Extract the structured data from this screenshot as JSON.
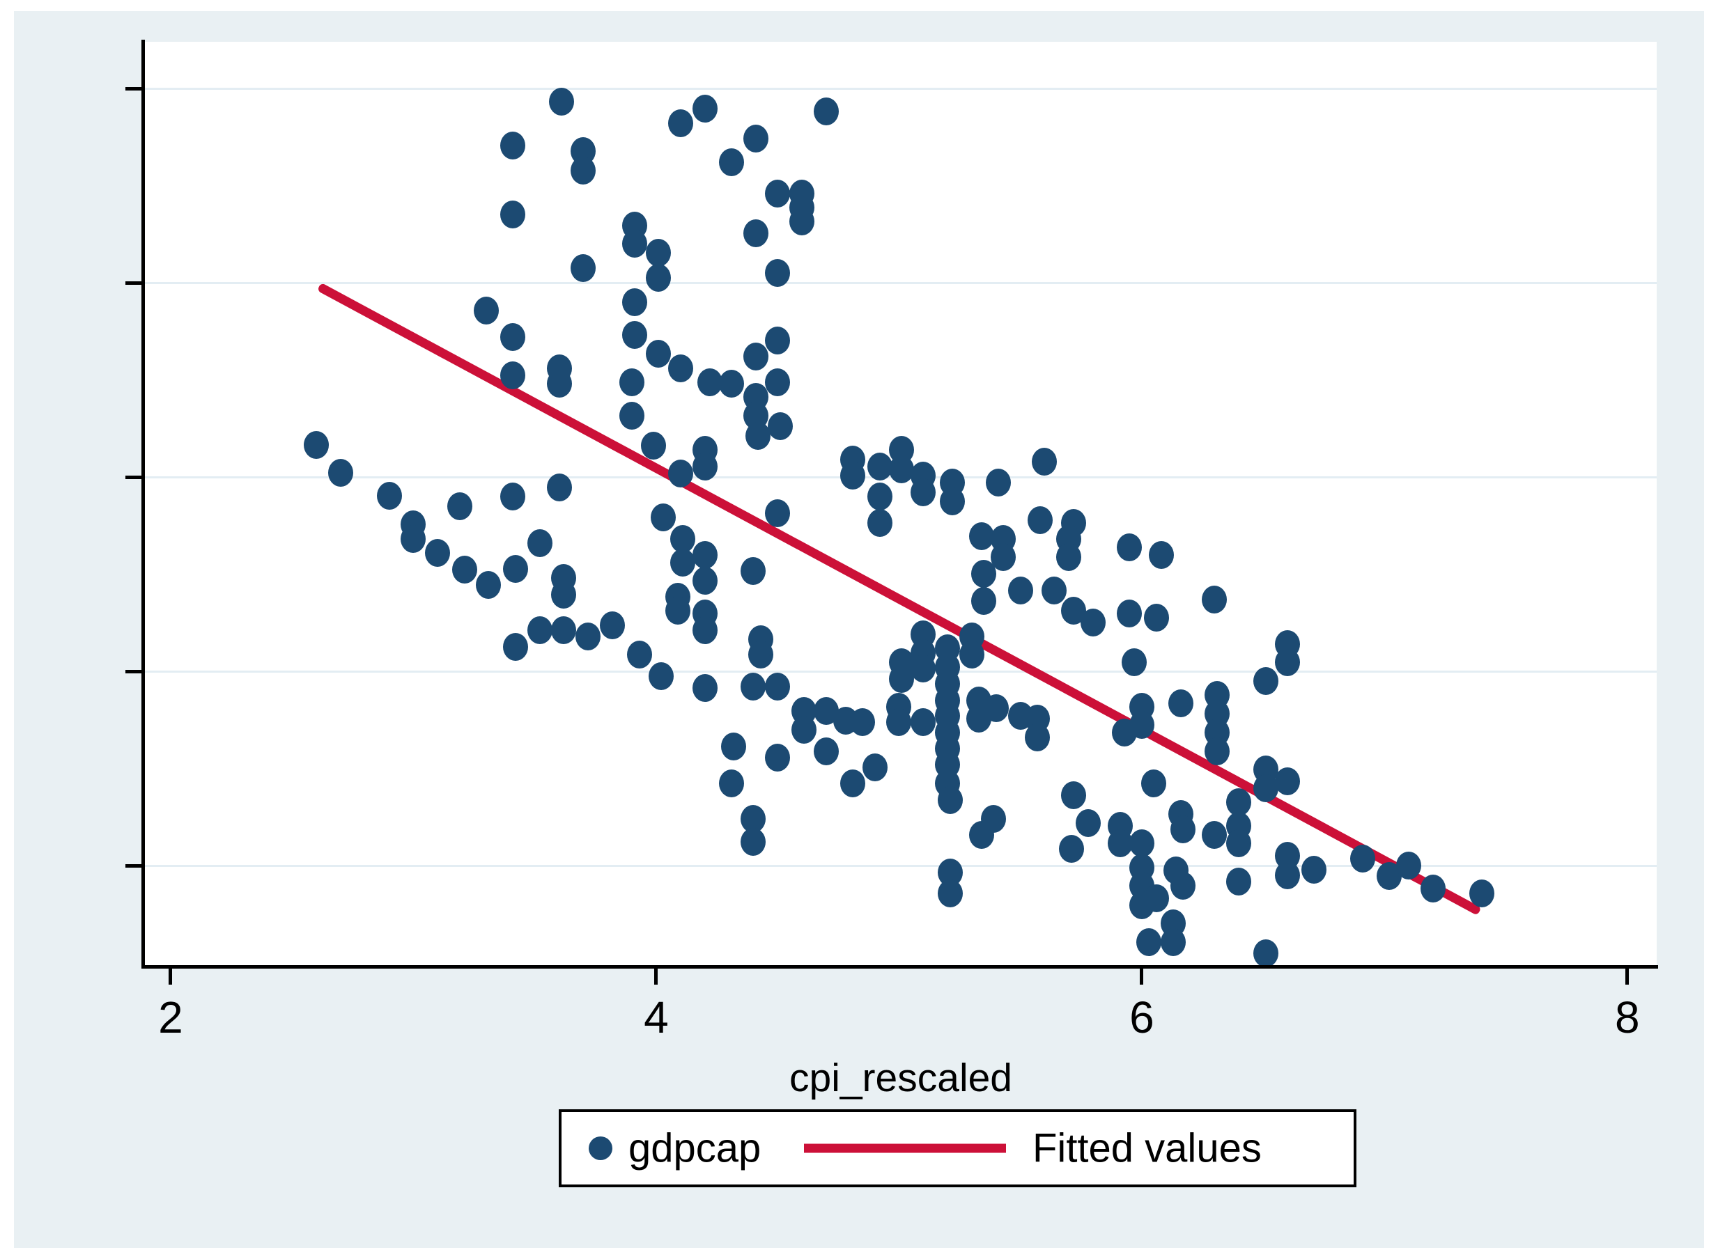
{
  "window": {
    "title": "Stata scatter graph"
  },
  "colors": {
    "background": "#e9f0f3",
    "plot_background": "#ffffff",
    "marker": "#1c4a72",
    "fitted_line": "#cc1038",
    "gridline": "#e3edf3",
    "axis": "#000000",
    "legend_border": "#000000"
  },
  "axis": {
    "xlabel": "cpi_rescaled",
    "x_tick_labels": [
      "2",
      "4",
      "6",
      "8"
    ],
    "y_tick_labels": []
  },
  "legend": {
    "gdpcap_label": "gdpcap",
    "fitted_label": "Fitted values"
  },
  "chart_data": {
    "type": "scatter",
    "title": "",
    "xlabel": "cpi_rescaled",
    "ylabel": "",
    "x_domain": [
      1.894,
      8.121
    ],
    "x_ticks": [
      2,
      4,
      6,
      8
    ],
    "grid": true,
    "legend_position": "bottom",
    "y_axis_note": "y-axis ticks are unlabeled in the image; point y-values are normalized 0-1 of plot height",
    "y_tick_norms": [
      0.109,
      0.319,
      0.529,
      0.739,
      0.949
    ],
    "series": [
      {
        "name": "gdpcap",
        "type": "scatter",
        "color": "#1c4a72",
        "points": [
          [
            3.61,
            0.935
          ],
          [
            4.2,
            0.928
          ],
          [
            4.1,
            0.912
          ],
          [
            4.7,
            0.925
          ],
          [
            3.41,
            0.888
          ],
          [
            3.7,
            0.882
          ],
          [
            3.7,
            0.861
          ],
          [
            4.41,
            0.895
          ],
          [
            4.31,
            0.87
          ],
          [
            3.41,
            0.813
          ],
          [
            4.5,
            0.836
          ],
          [
            4.6,
            0.836
          ],
          [
            4.6,
            0.821
          ],
          [
            4.6,
            0.806
          ],
          [
            3.91,
            0.801
          ],
          [
            3.91,
            0.782
          ],
          [
            4.01,
            0.772
          ],
          [
            4.01,
            0.745
          ],
          [
            3.7,
            0.755
          ],
          [
            4.41,
            0.793
          ],
          [
            4.5,
            0.75
          ],
          [
            3.3,
            0.709
          ],
          [
            3.91,
            0.718
          ],
          [
            3.41,
            0.681
          ],
          [
            3.91,
            0.683
          ],
          [
            4.01,
            0.663
          ],
          [
            4.5,
            0.677
          ],
          [
            4.41,
            0.66
          ],
          [
            3.9,
            0.632
          ],
          [
            3.9,
            0.596
          ],
          [
            3.41,
            0.639
          ],
          [
            3.6,
            0.647
          ],
          [
            3.6,
            0.63
          ],
          [
            4.1,
            0.647
          ],
          [
            4.22,
            0.632
          ],
          [
            4.31,
            0.63
          ],
          [
            4.5,
            0.632
          ],
          [
            4.41,
            0.616
          ],
          [
            4.41,
            0.596
          ],
          [
            4.51,
            0.584
          ],
          [
            4.42,
            0.574
          ],
          [
            4.2,
            0.559
          ],
          [
            4.2,
            0.541
          ],
          [
            4.1,
            0.533
          ],
          [
            3.99,
            0.563
          ],
          [
            4.81,
            0.548
          ],
          [
            4.81,
            0.531
          ],
          [
            4.92,
            0.541
          ],
          [
            5.01,
            0.559
          ],
          [
            5.01,
            0.538
          ],
          [
            5.1,
            0.531
          ],
          [
            5.1,
            0.513
          ],
          [
            5.22,
            0.523
          ],
          [
            5.22,
            0.503
          ],
          [
            5.41,
            0.523
          ],
          [
            5.6,
            0.546
          ],
          [
            4.92,
            0.508
          ],
          [
            4.92,
            0.48
          ],
          [
            4.5,
            0.49
          ],
          [
            2.6,
            0.564
          ],
          [
            2.7,
            0.534
          ],
          [
            2.9,
            0.509
          ],
          [
            3.19,
            0.498
          ],
          [
            3.0,
            0.478
          ],
          [
            3.0,
            0.462
          ],
          [
            3.1,
            0.447
          ],
          [
            3.21,
            0.429
          ],
          [
            3.31,
            0.413
          ],
          [
            3.42,
            0.43
          ],
          [
            3.52,
            0.458
          ],
          [
            3.62,
            0.42
          ],
          [
            3.62,
            0.402
          ],
          [
            3.42,
            0.346
          ],
          [
            3.52,
            0.364
          ],
          [
            3.62,
            0.364
          ],
          [
            3.72,
            0.357
          ],
          [
            3.82,
            0.369
          ],
          [
            3.93,
            0.337
          ],
          [
            4.02,
            0.314
          ],
          [
            4.03,
            0.486
          ],
          [
            3.41,
            0.508
          ],
          [
            3.6,
            0.518
          ],
          [
            4.11,
            0.462
          ],
          [
            4.11,
            0.437
          ],
          [
            4.2,
            0.445
          ],
          [
            4.2,
            0.417
          ],
          [
            4.09,
            0.4
          ],
          [
            4.09,
            0.385
          ],
          [
            4.2,
            0.382
          ],
          [
            4.2,
            0.364
          ],
          [
            4.4,
            0.428
          ],
          [
            4.43,
            0.354
          ],
          [
            4.43,
            0.337
          ],
          [
            4.4,
            0.303
          ],
          [
            4.5,
            0.303
          ],
          [
            4.2,
            0.301
          ],
          [
            4.32,
            0.238
          ],
          [
            4.31,
            0.198
          ],
          [
            4.61,
            0.276
          ],
          [
            4.61,
            0.256
          ],
          [
            4.7,
            0.276
          ],
          [
            4.7,
            0.233
          ],
          [
            4.5,
            0.226
          ],
          [
            4.78,
            0.266
          ],
          [
            4.85,
            0.264
          ],
          [
            4.9,
            0.215
          ],
          [
            4.81,
            0.198
          ],
          [
            4.4,
            0.16
          ],
          [
            4.4,
            0.135
          ],
          [
            5.01,
            0.329
          ],
          [
            5.01,
            0.311
          ],
          [
            5.1,
            0.359
          ],
          [
            5.1,
            0.339
          ],
          [
            5.1,
            0.322
          ],
          [
            5.2,
            0.344
          ],
          [
            5.2,
            0.324
          ],
          [
            5.2,
            0.306
          ],
          [
            5.2,
            0.288
          ],
          [
            5.2,
            0.271
          ],
          [
            5.2,
            0.253
          ],
          [
            5.2,
            0.236
          ],
          [
            5.2,
            0.218
          ],
          [
            5.2,
            0.198
          ],
          [
            5.21,
            0.18
          ],
          [
            5.0,
            0.281
          ],
          [
            5.0,
            0.264
          ],
          [
            5.1,
            0.264
          ],
          [
            5.3,
            0.357
          ],
          [
            5.3,
            0.337
          ],
          [
            5.33,
            0.288
          ],
          [
            5.33,
            0.268
          ],
          [
            5.4,
            0.279
          ],
          [
            5.5,
            0.271
          ],
          [
            5.57,
            0.268
          ],
          [
            5.57,
            0.248
          ],
          [
            5.34,
            0.465
          ],
          [
            5.43,
            0.462
          ],
          [
            5.43,
            0.443
          ],
          [
            5.35,
            0.425
          ],
          [
            5.35,
            0.395
          ],
          [
            5.5,
            0.407
          ],
          [
            5.64,
            0.407
          ],
          [
            5.58,
            0.483
          ],
          [
            5.72,
            0.48
          ],
          [
            5.7,
            0.462
          ],
          [
            5.7,
            0.443
          ],
          [
            5.95,
            0.453
          ],
          [
            6.08,
            0.445
          ],
          [
            5.72,
            0.385
          ],
          [
            5.8,
            0.372
          ],
          [
            5.95,
            0.382
          ],
          [
            6.06,
            0.377
          ],
          [
            5.97,
            0.329
          ],
          [
            5.93,
            0.253
          ],
          [
            6.0,
            0.281
          ],
          [
            6.0,
            0.261
          ],
          [
            6.16,
            0.285
          ],
          [
            6.05,
            0.198
          ],
          [
            5.72,
            0.185
          ],
          [
            5.78,
            0.155
          ],
          [
            5.71,
            0.127
          ],
          [
            5.21,
            0.102
          ],
          [
            5.21,
            0.079
          ],
          [
            5.34,
            0.142
          ],
          [
            5.39,
            0.16
          ],
          [
            5.91,
            0.152
          ],
          [
            5.91,
            0.133
          ],
          [
            6.0,
            0.133
          ],
          [
            6.0,
            0.107
          ],
          [
            6.0,
            0.087
          ],
          [
            6.0,
            0.066
          ],
          [
            6.16,
            0.165
          ],
          [
            6.17,
            0.148
          ],
          [
            6.14,
            0.104
          ],
          [
            6.06,
            0.074
          ],
          [
            6.17,
            0.087
          ],
          [
            6.13,
            0.047
          ],
          [
            6.03,
            0.026
          ],
          [
            6.13,
            0.026
          ],
          [
            6.3,
            0.397
          ],
          [
            6.6,
            0.349
          ],
          [
            6.6,
            0.329
          ],
          [
            6.51,
            0.309
          ],
          [
            6.31,
            0.294
          ],
          [
            6.31,
            0.273
          ],
          [
            6.31,
            0.253
          ],
          [
            6.31,
            0.233
          ],
          [
            6.51,
            0.213
          ],
          [
            6.51,
            0.193
          ],
          [
            6.6,
            0.2
          ],
          [
            6.4,
            0.178
          ],
          [
            6.3,
            0.142
          ],
          [
            6.4,
            0.152
          ],
          [
            6.4,
            0.133
          ],
          [
            6.6,
            0.12
          ],
          [
            6.6,
            0.099
          ],
          [
            6.71,
            0.105
          ],
          [
            6.4,
            0.092
          ],
          [
            6.51,
            0.014
          ],
          [
            6.91,
            0.117
          ],
          [
            7.02,
            0.098
          ],
          [
            7.1,
            0.109
          ],
          [
            7.2,
            0.084
          ],
          [
            7.4,
            0.079
          ]
        ]
      },
      {
        "name": "Fitted values",
        "type": "line",
        "color": "#cc1038",
        "start": [
          2.61,
          0.735
        ],
        "end": [
          7.39,
          0.059
        ]
      }
    ]
  }
}
